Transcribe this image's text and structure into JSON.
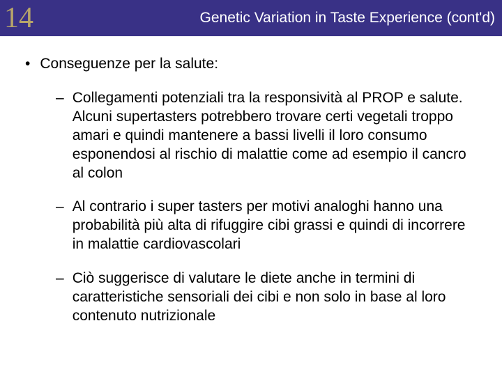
{
  "header": {
    "chapter_number": "14",
    "title": "Genetic Variation in Taste Experience (cont'd)",
    "bg_color": "#393186",
    "title_color": "#ffffff",
    "number_color": "#b7a56a"
  },
  "main_point": "Conseguenze per la salute:",
  "sub_points": [
    "Collegamenti potenziali tra la responsività al PROP e salute. Alcuni supertasters potrebbero trovare certi vegetali troppo amari e quindi mantenere a bassi livelli il loro consumo esponendosi al rischio di malattie come ad esempio il cancro al colon",
    "Al contrario i super tasters per motivi analoghi hanno una probabilità più alta di rifuggire cibi grassi e quindi di incorrere in malattie cardiovascolari",
    "Ciò suggerisce di valutare le diete anche in termini di caratteristiche sensoriali dei cibi e non solo in base al loro contenuto nutrizionale"
  ]
}
